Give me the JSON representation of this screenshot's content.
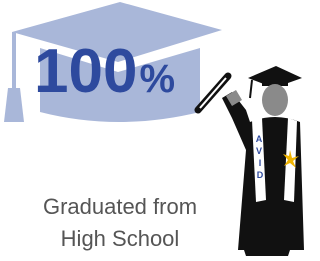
{
  "headline": {
    "number": "100",
    "unit": "%"
  },
  "caption": {
    "line1": "Graduated from",
    "line2": "High School"
  },
  "figure": {
    "stole_letters": [
      "A",
      "V",
      "I",
      "D"
    ]
  }
}
